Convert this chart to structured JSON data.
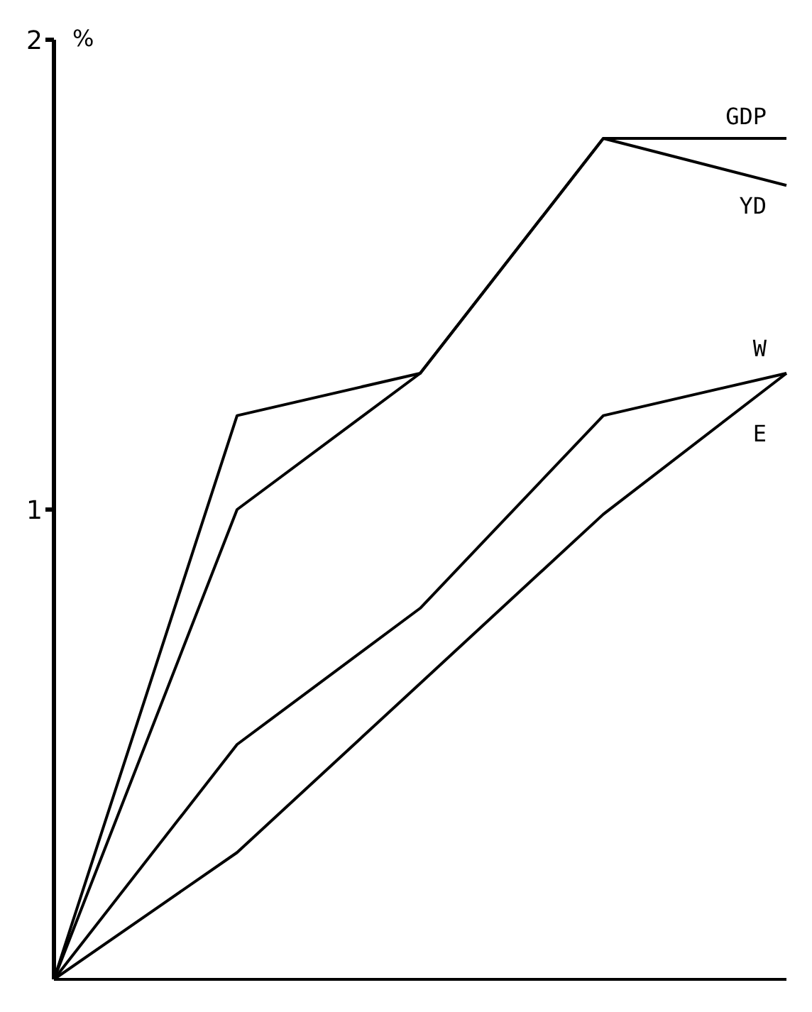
{
  "chart_data": {
    "type": "line",
    "ylabel": "%",
    "categories": [
      null,
      null,
      null,
      null,
      null
    ],
    "series": [
      {
        "name": "GDP",
        "color": "#000000",
        "values": [
          0,
          1.0,
          1.29,
          1.79,
          1.79
        ]
      },
      {
        "name": "YD",
        "color": "#000000",
        "values": [
          0,
          1.2,
          1.29,
          1.79,
          1.69
        ]
      },
      {
        "name": "W",
        "color": "#000000",
        "values": [
          0,
          0.5,
          0.79,
          1.2,
          1.29
        ]
      },
      {
        "name": "E",
        "color": "#000000",
        "values": [
          0,
          0.27,
          0.63,
          0.99,
          1.29
        ]
      }
    ],
    "ylim": [
      0,
      2
    ],
    "yticks": [
      1,
      2
    ],
    "tick_labels": "y",
    "grid": false,
    "legend": false,
    "marker": "none",
    "line_style": "solid"
  }
}
